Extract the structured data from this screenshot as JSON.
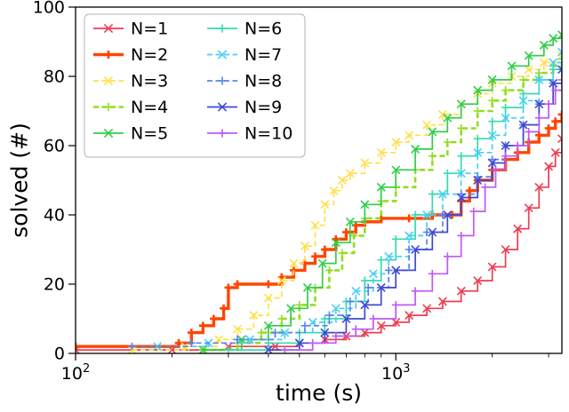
{
  "chart_data": {
    "type": "line",
    "subtype": "step-post",
    "title": "",
    "xlabel": "time (s)",
    "ylabel": "solved (#)",
    "xscale": "log",
    "xlim": [
      100,
      3300
    ],
    "ylim": [
      0,
      100
    ],
    "y_ticks": [
      0,
      20,
      40,
      60,
      80,
      100
    ],
    "x_major_ticks": [
      {
        "value": 100,
        "base": "10",
        "exp": "2"
      },
      {
        "value": 1000,
        "base": "10",
        "exp": "3"
      }
    ],
    "x_minor_ticks": [
      200,
      300,
      400,
      500,
      600,
      700,
      800,
      900,
      2000,
      3000
    ],
    "legend": {
      "position": "upper left",
      "columns": 2
    },
    "series": [
      {
        "name": "N=1",
        "color": "#ee3d52",
        "linestyle": "solid",
        "linewidth": 1.7,
        "marker": "x",
        "points": [
          [
            100,
            1
          ],
          [
            200,
            1
          ],
          [
            300,
            2
          ],
          [
            420,
            2
          ],
          [
            500,
            3
          ],
          [
            600,
            4
          ],
          [
            700,
            5
          ],
          [
            800,
            6
          ],
          [
            900,
            8
          ],
          [
            1000,
            9
          ],
          [
            1100,
            11
          ],
          [
            1250,
            13
          ],
          [
            1400,
            15
          ],
          [
            1600,
            18
          ],
          [
            1800,
            21
          ],
          [
            2000,
            25
          ],
          [
            2200,
            30
          ],
          [
            2400,
            36
          ],
          [
            2600,
            42
          ],
          [
            2800,
            48
          ],
          [
            3000,
            54
          ],
          [
            3150,
            58
          ],
          [
            3300,
            62
          ]
        ]
      },
      {
        "name": "N=2",
        "color": "#ff4500",
        "linestyle": "solid",
        "linewidth": 3.4,
        "marker": "+",
        "points": [
          [
            100,
            2
          ],
          [
            210,
            3
          ],
          [
            230,
            6
          ],
          [
            250,
            8
          ],
          [
            270,
            10
          ],
          [
            290,
            13
          ],
          [
            300,
            19
          ],
          [
            320,
            20
          ],
          [
            400,
            20
          ],
          [
            440,
            22
          ],
          [
            480,
            24
          ],
          [
            520,
            26
          ],
          [
            560,
            28
          ],
          [
            600,
            30
          ],
          [
            650,
            33
          ],
          [
            700,
            35
          ],
          [
            750,
            37
          ],
          [
            800,
            38
          ],
          [
            900,
            39
          ],
          [
            1100,
            39
          ],
          [
            1300,
            40
          ],
          [
            1500,
            40
          ],
          [
            1600,
            44
          ],
          [
            1700,
            47
          ],
          [
            1800,
            50
          ],
          [
            2000,
            53
          ],
          [
            2200,
            56
          ],
          [
            2400,
            58
          ],
          [
            2600,
            61
          ],
          [
            2800,
            63
          ],
          [
            3000,
            65
          ],
          [
            3150,
            67
          ],
          [
            3300,
            69
          ]
        ]
      },
      {
        "name": "N=3",
        "color": "#ffdf4d",
        "linestyle": "dashed",
        "linewidth": 1.7,
        "marker": "x",
        "points": [
          [
            150,
            1
          ],
          [
            220,
            2
          ],
          [
            280,
            4
          ],
          [
            320,
            7
          ],
          [
            360,
            11
          ],
          [
            400,
            16
          ],
          [
            440,
            21
          ],
          [
            480,
            26
          ],
          [
            520,
            31
          ],
          [
            560,
            37
          ],
          [
            600,
            43
          ],
          [
            640,
            47
          ],
          [
            680,
            50
          ],
          [
            720,
            52
          ],
          [
            800,
            55
          ],
          [
            900,
            58
          ],
          [
            1000,
            61
          ],
          [
            1100,
            63
          ],
          [
            1250,
            66
          ],
          [
            1400,
            69
          ],
          [
            1600,
            72
          ],
          [
            1800,
            75
          ],
          [
            2000,
            78
          ],
          [
            2300,
            80
          ],
          [
            2600,
            82
          ],
          [
            2900,
            84
          ],
          [
            3300,
            86
          ]
        ]
      },
      {
        "name": "N=4",
        "color": "#93dd22",
        "linestyle": "dashed",
        "linewidth": 2.6,
        "marker": "+",
        "points": [
          [
            250,
            1
          ],
          [
            320,
            3
          ],
          [
            380,
            6
          ],
          [
            440,
            10
          ],
          [
            500,
            14
          ],
          [
            560,
            19
          ],
          [
            620,
            24
          ],
          [
            680,
            29
          ],
          [
            740,
            34
          ],
          [
            800,
            39
          ],
          [
            900,
            44
          ],
          [
            1000,
            48
          ],
          [
            1150,
            53
          ],
          [
            1300,
            57
          ],
          [
            1450,
            61
          ],
          [
            1600,
            65
          ],
          [
            1800,
            70
          ],
          [
            2000,
            73
          ],
          [
            2200,
            76
          ],
          [
            2500,
            79
          ],
          [
            2800,
            81
          ],
          [
            3100,
            83
          ],
          [
            3300,
            85
          ]
        ]
      },
      {
        "name": "N=5",
        "color": "#30cf48",
        "linestyle": "solid",
        "linewidth": 1.7,
        "marker": "x",
        "points": [
          [
            250,
            1
          ],
          [
            330,
            4
          ],
          [
            400,
            8
          ],
          [
            470,
            13
          ],
          [
            530,
            19
          ],
          [
            590,
            26
          ],
          [
            650,
            32
          ],
          [
            720,
            38
          ],
          [
            800,
            43
          ],
          [
            900,
            48
          ],
          [
            1000,
            53
          ],
          [
            1150,
            59
          ],
          [
            1300,
            64
          ],
          [
            1450,
            68
          ],
          [
            1600,
            72
          ],
          [
            1800,
            76
          ],
          [
            2000,
            79
          ],
          [
            2300,
            83
          ],
          [
            2600,
            86
          ],
          [
            2900,
            89
          ],
          [
            3100,
            91
          ],
          [
            3300,
            92
          ]
        ]
      },
      {
        "name": "N=6",
        "color": "#35dcb0",
        "linestyle": "solid",
        "linewidth": 1.7,
        "marker": "+",
        "points": [
          [
            300,
            1
          ],
          [
            400,
            3
          ],
          [
            500,
            6
          ],
          [
            600,
            10
          ],
          [
            700,
            15
          ],
          [
            800,
            21
          ],
          [
            900,
            27
          ],
          [
            1000,
            33
          ],
          [
            1150,
            40
          ],
          [
            1300,
            46
          ],
          [
            1450,
            52
          ],
          [
            1600,
            57
          ],
          [
            1800,
            62
          ],
          [
            2000,
            67
          ],
          [
            2200,
            71
          ],
          [
            2500,
            75
          ],
          [
            2800,
            79
          ],
          [
            3100,
            82
          ],
          [
            3300,
            84
          ]
        ]
      },
      {
        "name": "N=7",
        "color": "#49cff5",
        "linestyle": "dashed",
        "linewidth": 1.7,
        "marker": "x",
        "points": [
          [
            180,
            2
          ],
          [
            260,
            3
          ],
          [
            350,
            4
          ],
          [
            450,
            6
          ],
          [
            550,
            9
          ],
          [
            650,
            13
          ],
          [
            750,
            18
          ],
          [
            850,
            23
          ],
          [
            950,
            28
          ],
          [
            1100,
            34
          ],
          [
            1250,
            40
          ],
          [
            1400,
            46
          ],
          [
            1600,
            52
          ],
          [
            1800,
            58
          ],
          [
            2000,
            63
          ],
          [
            2200,
            68
          ],
          [
            2500,
            73
          ],
          [
            2800,
            79
          ],
          [
            3100,
            84
          ],
          [
            3300,
            87
          ]
        ]
      },
      {
        "name": "N=8",
        "color": "#5585f2",
        "linestyle": "dashed",
        "linewidth": 1.7,
        "marker": "+",
        "points": [
          [
            150,
            2
          ],
          [
            230,
            3
          ],
          [
            320,
            4
          ],
          [
            420,
            6
          ],
          [
            520,
            8
          ],
          [
            620,
            11
          ],
          [
            720,
            15
          ],
          [
            820,
            19
          ],
          [
            950,
            24
          ],
          [
            1100,
            30
          ],
          [
            1250,
            35
          ],
          [
            1400,
            40
          ],
          [
            1600,
            46
          ],
          [
            1800,
            51
          ],
          [
            2000,
            56
          ],
          [
            2200,
            60
          ],
          [
            2500,
            66
          ],
          [
            2800,
            72
          ],
          [
            3100,
            78
          ],
          [
            3300,
            82
          ]
        ]
      },
      {
        "name": "N=9",
        "color": "#3f4ad1",
        "linestyle": "solid",
        "linewidth": 1.7,
        "marker": "x",
        "points": [
          [
            400,
            1
          ],
          [
            500,
            3
          ],
          [
            600,
            6
          ],
          [
            700,
            10
          ],
          [
            800,
            14
          ],
          [
            900,
            19
          ],
          [
            1000,
            24
          ],
          [
            1150,
            30
          ],
          [
            1300,
            35
          ],
          [
            1450,
            40
          ],
          [
            1600,
            45
          ],
          [
            1800,
            50
          ],
          [
            2000,
            55
          ],
          [
            2200,
            60
          ],
          [
            2500,
            66
          ],
          [
            2800,
            72
          ],
          [
            3100,
            78
          ],
          [
            3300,
            82
          ]
        ]
      },
      {
        "name": "N=10",
        "color": "#bf5af2",
        "linestyle": "solid",
        "linewidth": 1.7,
        "marker": "+",
        "points": [
          [
            450,
            1
          ],
          [
            550,
            3
          ],
          [
            650,
            5
          ],
          [
            750,
            7
          ],
          [
            850,
            10
          ],
          [
            1000,
            14
          ],
          [
            1150,
            18
          ],
          [
            1300,
            23
          ],
          [
            1450,
            28
          ],
          [
            1600,
            34
          ],
          [
            1750,
            41
          ],
          [
            1900,
            48
          ],
          [
            2050,
            53
          ],
          [
            2200,
            57
          ],
          [
            2400,
            60
          ],
          [
            2600,
            64
          ],
          [
            2800,
            68
          ],
          [
            3000,
            72
          ],
          [
            3150,
            76
          ],
          [
            3300,
            79
          ]
        ]
      }
    ]
  }
}
